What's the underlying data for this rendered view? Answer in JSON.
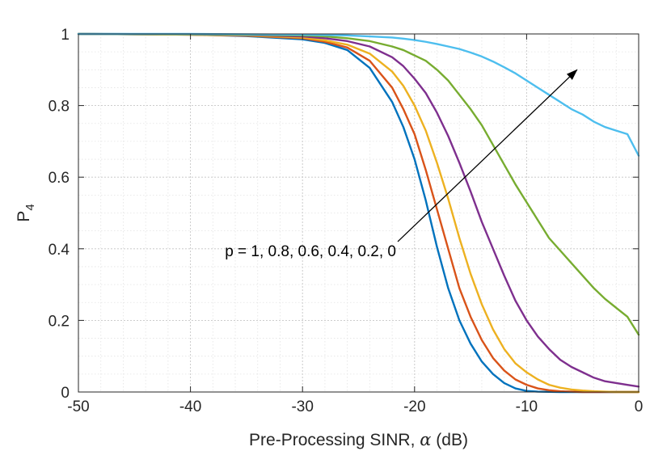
{
  "chart_data": {
    "type": "line",
    "xlabel": "Pre-Processing SINR, α (dB)",
    "xlabel_text": "Pre-Processing SINR, ",
    "xlabel_symbol": "α",
    "xlabel_unit": " (dB)",
    "ylabel": "P4",
    "ylabel_main": "P",
    "ylabel_sub": "4",
    "xlim": [
      -50,
      0
    ],
    "ylim": [
      0,
      1
    ],
    "xticks": [
      -50,
      -40,
      -30,
      -20,
      -10,
      0
    ],
    "yticks": [
      0,
      0.2,
      0.4,
      0.6,
      0.8,
      1
    ],
    "ytick_labels": [
      "0",
      "0.2",
      "0.4",
      "0.6",
      "0.8",
      "1"
    ],
    "grid": true,
    "minor_grid": true,
    "annotation": {
      "text": "p = 1, 0.8, 0.6, 0.4, 0.2, 0",
      "arrow_from": [
        -21.5,
        0.42
      ],
      "arrow_to": [
        -5.5,
        0.9
      ]
    },
    "series": [
      {
        "name": "p = 1",
        "color": "#0072BD",
        "x": [
          -50,
          -40,
          -35,
          -30,
          -28,
          -26,
          -24,
          -22,
          -21,
          -20,
          -19,
          -18,
          -17,
          -16,
          -15,
          -14,
          -13,
          -12,
          -11,
          -10,
          -9,
          -8,
          -7,
          -6,
          -5,
          -4,
          -3,
          -2,
          -1,
          0
        ],
        "y": [
          1,
          0.998,
          0.994,
          0.985,
          0.975,
          0.955,
          0.905,
          0.81,
          0.74,
          0.65,
          0.535,
          0.405,
          0.29,
          0.2,
          0.135,
          0.085,
          0.05,
          0.025,
          0.01,
          0.003,
          0.001,
          0.0005,
          0,
          0,
          0,
          0,
          0,
          0,
          0,
          0
        ]
      },
      {
        "name": "p = 0.8",
        "color": "#D95319",
        "x": [
          -50,
          -40,
          -35,
          -30,
          -28,
          -26,
          -24,
          -22,
          -21,
          -20,
          -19,
          -18,
          -17,
          -16,
          -15,
          -14,
          -13,
          -12,
          -11,
          -10,
          -9,
          -8,
          -7,
          -6,
          -5,
          -4,
          -3,
          -2,
          -1,
          0
        ],
        "y": [
          1,
          0.998,
          0.995,
          0.988,
          0.978,
          0.962,
          0.925,
          0.85,
          0.79,
          0.72,
          0.62,
          0.51,
          0.4,
          0.29,
          0.21,
          0.145,
          0.095,
          0.06,
          0.035,
          0.02,
          0.01,
          0.005,
          0.002,
          0.001,
          0,
          0,
          0,
          0,
          0,
          0
        ]
      },
      {
        "name": "p = 0.6",
        "color": "#EDB120",
        "x": [
          -50,
          -40,
          -35,
          -30,
          -28,
          -26,
          -24,
          -22,
          -21,
          -20,
          -19,
          -18,
          -17,
          -16,
          -15,
          -14,
          -13,
          -12,
          -11,
          -10,
          -9,
          -8,
          -7,
          -6,
          -5,
          -4,
          -3,
          -2,
          -1,
          0
        ],
        "y": [
          1,
          0.998,
          0.996,
          0.99,
          0.982,
          0.97,
          0.945,
          0.895,
          0.855,
          0.8,
          0.73,
          0.64,
          0.54,
          0.43,
          0.33,
          0.245,
          0.175,
          0.12,
          0.08,
          0.055,
          0.035,
          0.02,
          0.012,
          0.007,
          0.004,
          0.002,
          0.001,
          0,
          0,
          0
        ]
      },
      {
        "name": "p = 0.4",
        "color": "#7E2F8E",
        "x": [
          -50,
          -40,
          -35,
          -30,
          -28,
          -26,
          -24,
          -22,
          -21,
          -20,
          -19,
          -18,
          -17,
          -16,
          -15,
          -14,
          -13,
          -12,
          -11,
          -10,
          -9,
          -8,
          -7,
          -6,
          -5,
          -4,
          -3,
          -2,
          -1,
          0
        ],
        "y": [
          1,
          0.999,
          0.997,
          0.993,
          0.988,
          0.98,
          0.965,
          0.935,
          0.91,
          0.875,
          0.835,
          0.78,
          0.715,
          0.64,
          0.56,
          0.475,
          0.4,
          0.325,
          0.255,
          0.2,
          0.155,
          0.12,
          0.09,
          0.07,
          0.055,
          0.04,
          0.03,
          0.025,
          0.02,
          0.015
        ]
      },
      {
        "name": "p = 0.2",
        "color": "#77AC30",
        "x": [
          -50,
          -40,
          -35,
          -30,
          -28,
          -26,
          -24,
          -22,
          -21,
          -20,
          -19,
          -18,
          -17,
          -16,
          -15,
          -14,
          -13,
          -12,
          -11,
          -10,
          -9,
          -8,
          -7,
          -6,
          -5,
          -4,
          -3,
          -2,
          -1,
          0
        ],
        "y": [
          1,
          0.999,
          0.998,
          0.996,
          0.993,
          0.988,
          0.98,
          0.965,
          0.955,
          0.94,
          0.925,
          0.9,
          0.87,
          0.83,
          0.79,
          0.745,
          0.69,
          0.635,
          0.58,
          0.53,
          0.48,
          0.43,
          0.395,
          0.36,
          0.325,
          0.29,
          0.26,
          0.235,
          0.21,
          0.16
        ]
      },
      {
        "name": "p = 0",
        "color": "#4DBEEE",
        "x": [
          -50,
          -40,
          -35,
          -30,
          -28,
          -26,
          -24,
          -22,
          -21,
          -20,
          -19,
          -18,
          -17,
          -16,
          -15,
          -14,
          -13,
          -12,
          -11,
          -10,
          -9,
          -8,
          -7,
          -6,
          -5,
          -4,
          -3,
          -2,
          -1,
          0
        ],
        "y": [
          1,
          1,
          0.999,
          0.998,
          0.997,
          0.996,
          0.993,
          0.99,
          0.987,
          0.983,
          0.978,
          0.972,
          0.965,
          0.958,
          0.948,
          0.937,
          0.923,
          0.907,
          0.89,
          0.87,
          0.85,
          0.83,
          0.81,
          0.79,
          0.775,
          0.755,
          0.74,
          0.73,
          0.72,
          0.66
        ]
      }
    ]
  }
}
